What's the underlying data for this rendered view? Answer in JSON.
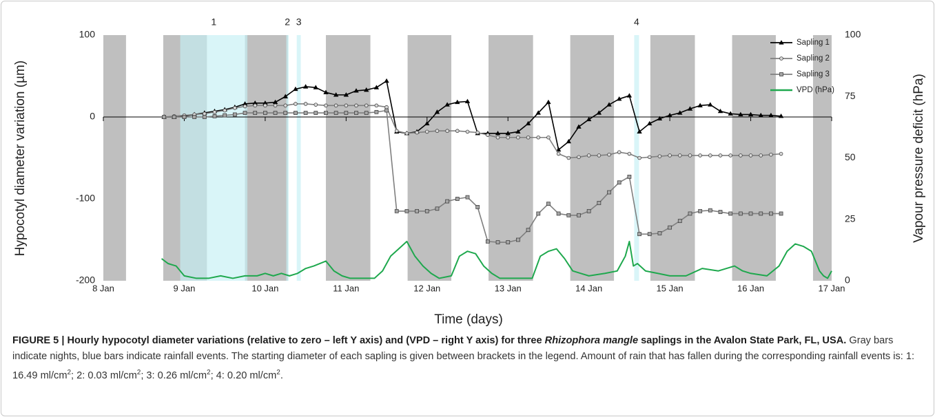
{
  "chart_data": {
    "type": "line",
    "x_label": "Time (days)",
    "y_label": "Hypocotyl diameter variation (µm)",
    "y2_label": "Vapour pressure deficit (hPa)",
    "xlim": [
      8,
      17
    ],
    "xticks": [
      {
        "value": 8,
        "label": "8 Jan"
      },
      {
        "value": 9,
        "label": "9 Jan"
      },
      {
        "value": 10,
        "label": "10 Jan"
      },
      {
        "value": 11,
        "label": "11 Jan"
      },
      {
        "value": 12,
        "label": "12 Jan"
      },
      {
        "value": 13,
        "label": "13 Jan"
      },
      {
        "value": 14,
        "label": "14 Jan"
      },
      {
        "value": 15,
        "label": "15 Jan"
      },
      {
        "value": 16,
        "label": "16 Jan"
      },
      {
        "value": 17,
        "label": "17 Jan"
      }
    ],
    "ylim": [
      -200,
      100
    ],
    "yticks": [
      -200,
      -100,
      0,
      100
    ],
    "y2lim": [
      0,
      100
    ],
    "y2ticks": [
      0,
      25,
      50,
      75,
      100
    ],
    "legend": "top-right",
    "night_color": "#bfbfbf",
    "rain_color": "#c4eff5",
    "night_bands": [
      [
        8.0,
        8.28
      ],
      [
        8.74,
        9.28
      ],
      [
        9.75,
        10.28
      ],
      [
        10.75,
        11.3
      ],
      [
        11.76,
        12.3
      ],
      [
        12.76,
        13.31
      ],
      [
        13.77,
        14.31
      ],
      [
        14.76,
        15.31
      ],
      [
        15.77,
        16.31
      ],
      [
        16.77,
        17.0
      ]
    ],
    "rain_bands": [
      {
        "label": "1",
        "start": 8.95,
        "end": 9.78
      },
      {
        "label": "2",
        "start": 10.26,
        "end": 10.29
      },
      {
        "label": "3",
        "start": 10.39,
        "end": 10.44
      },
      {
        "label": "4",
        "start": 14.56,
        "end": 14.62
      }
    ],
    "x": [
      8.75,
      8.875,
      9,
      9.125,
      9.25,
      9.375,
      9.5,
      9.625,
      9.75,
      9.875,
      10,
      10.125,
      10.25,
      10.375,
      10.5,
      10.625,
      10.75,
      10.875,
      11,
      11.125,
      11.25,
      11.375,
      11.5,
      11.625,
      11.75,
      11.875,
      12,
      12.125,
      12.25,
      12.375,
      12.5,
      12.625,
      12.75,
      12.875,
      13,
      13.125,
      13.25,
      13.375,
      13.5,
      13.625,
      13.75,
      13.875,
      14,
      14.125,
      14.25,
      14.375,
      14.5,
      14.625,
      14.75,
      14.875,
      15,
      15.125,
      15.25,
      15.375,
      15.5,
      15.625,
      15.75,
      15.875,
      16,
      16.125,
      16.25,
      16.375
    ],
    "series": [
      {
        "name": "Sapling 1",
        "color": "#000000",
        "marker": "triangle",
        "marker_color": "#000000",
        "values": [
          0,
          0,
          1,
          3,
          5,
          7,
          9,
          12,
          16,
          17,
          17,
          18,
          25,
          34,
          37,
          36,
          30,
          27,
          27,
          32,
          33,
          36,
          44,
          -18,
          -20,
          -18,
          -8,
          6,
          15,
          18,
          19,
          -20,
          -20,
          -20,
          -20,
          -18,
          -8,
          5,
          18,
          -40,
          -30,
          -12,
          -3,
          5,
          15,
          22,
          26,
          -18,
          -8,
          -2,
          2,
          5,
          10,
          14,
          15,
          7,
          4,
          3,
          3,
          2,
          2,
          1
        ]
      },
      {
        "name": "Sapling 2",
        "color": "#7f7f7f",
        "marker": "circle",
        "marker_color": "#d9d9d9",
        "values": [
          0,
          1,
          2,
          3,
          4,
          6,
          8,
          11,
          13,
          14,
          14,
          14,
          14,
          16,
          16,
          15,
          14,
          14,
          14,
          14,
          14,
          14,
          12,
          -17,
          -20,
          -19,
          -18,
          -17,
          -17,
          -17,
          -18,
          -19,
          -22,
          -25,
          -25,
          -25,
          -25,
          -25,
          -25,
          -45,
          -50,
          -49,
          -47,
          -47,
          -46,
          -43,
          -45,
          -50,
          -49,
          -48,
          -47,
          -47,
          -47,
          -47,
          -47,
          -47,
          -47,
          -47,
          -47,
          -47,
          -46,
          -45
        ]
      },
      {
        "name": "Sapling 3",
        "color": "#7f7f7f",
        "marker": "square",
        "marker_color": "#a6a6a6",
        "values": [
          0,
          0,
          0,
          0,
          0,
          1,
          2,
          3,
          5,
          5,
          5,
          5,
          5,
          5,
          5,
          5,
          5,
          5,
          5,
          5,
          5,
          6,
          8,
          -115,
          -115,
          -115,
          -115,
          -112,
          -103,
          -100,
          -98,
          -110,
          -152,
          -153,
          -153,
          -150,
          -138,
          -118,
          -106,
          -118,
          -120,
          -120,
          -115,
          -105,
          -92,
          -80,
          -73,
          -143,
          -143,
          -142,
          -135,
          -127,
          -118,
          -115,
          -114,
          -116,
          -118,
          -118,
          -118,
          -118,
          -118,
          -118
        ]
      },
      {
        "name": "VPD (hPa)",
        "color": "#1ea84d",
        "axis": "y2",
        "x": [
          8.72,
          8.8,
          8.9,
          9,
          9.15,
          9.3,
          9.45,
          9.6,
          9.75,
          9.9,
          10,
          10.1,
          10.2,
          10.3,
          10.4,
          10.5,
          10.6,
          10.75,
          10.85,
          10.95,
          11.05,
          11.2,
          11.35,
          11.45,
          11.55,
          11.65,
          11.75,
          11.85,
          11.95,
          12.05,
          12.15,
          12.3,
          12.4,
          12.5,
          12.6,
          12.7,
          12.8,
          12.9,
          13.1,
          13.3,
          13.4,
          13.5,
          13.6,
          13.7,
          13.8,
          13.9,
          14.0,
          14.2,
          14.35,
          14.45,
          14.5,
          14.55,
          14.6,
          14.7,
          14.85,
          15.0,
          15.2,
          15.4,
          15.6,
          15.8,
          15.9,
          16.0,
          16.2,
          16.35,
          16.45,
          16.55,
          16.65,
          16.75,
          16.85,
          16.9,
          16.95,
          17.0
        ],
        "values": [
          9,
          7,
          6,
          2,
          1,
          1,
          2,
          1,
          2,
          2,
          3,
          2,
          3,
          2,
          3,
          5,
          6,
          8,
          4,
          2,
          1,
          1,
          1,
          4,
          10,
          13,
          16,
          10,
          6,
          3,
          1,
          2,
          10,
          12,
          11,
          6,
          3,
          1,
          1,
          1,
          10,
          12,
          13,
          9,
          4,
          3,
          2,
          3,
          4,
          10,
          16,
          6,
          7,
          4,
          3,
          2,
          2,
          5,
          4,
          6,
          4,
          3,
          2,
          6,
          12,
          15,
          14,
          12,
          4,
          2,
          1,
          4
        ]
      }
    ]
  },
  "caption": {
    "label": "FIGURE 5 |",
    "title_1": "Hourly hypocotyl diameter variations (relative to zero – left Y axis) and (VPD – right Y axis) for three",
    "species": "Rhizophora mangle",
    "title_2": "saplings in the Avalon State Park, FL, USA.",
    "body": [
      "Gray bars indicate nights, blue bars indicate rainfall events. The starting diameter of each sapling is given between brackets in the legend. Amount of rain that has fallen during the corresponding rainfall events is: 1: 16.49 ml/cm",
      "; 2: 0.03 ml/cm",
      "; 3: 0.26 ml/cm",
      "; 4: 0.20 ml/cm",
      "."
    ],
    "superscript": "2"
  }
}
